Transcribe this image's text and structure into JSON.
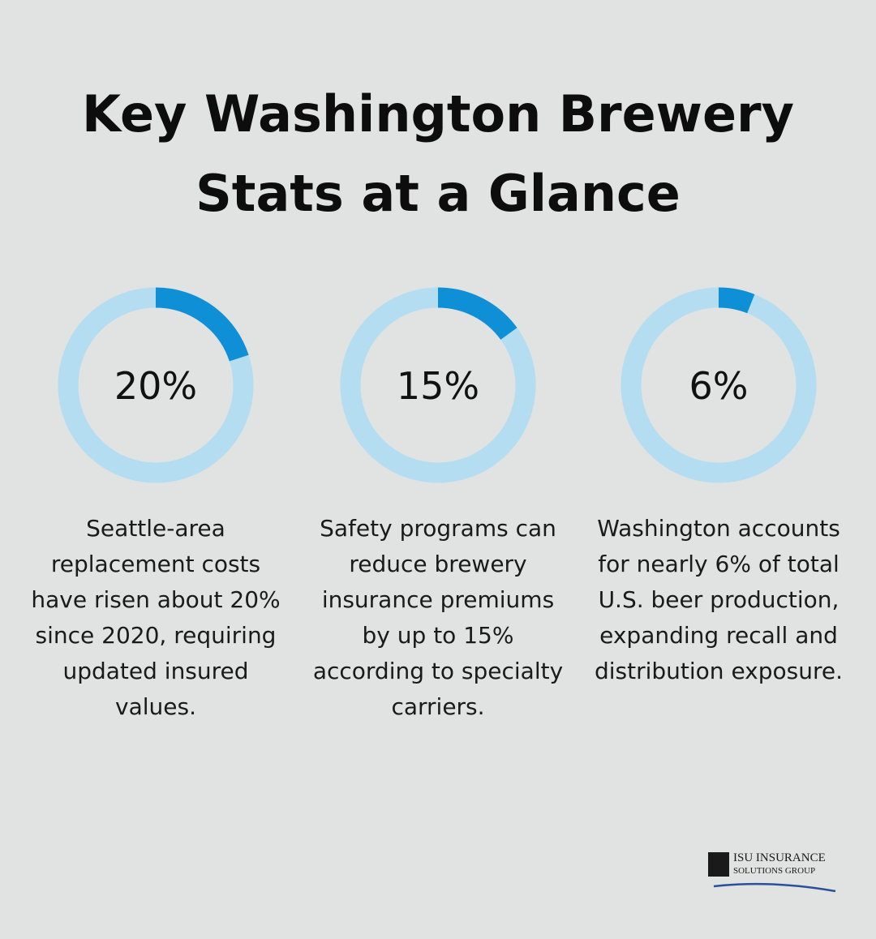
{
  "title": "Key Washington Brewery Stats at a Glance",
  "chart_data": [
    {
      "type": "donut",
      "values": [
        20
      ],
      "value_labels": [
        "20%"
      ],
      "color": "#0f8fd6",
      "track_color": "#b5ddf1",
      "annotation": "Seattle-area replacement costs have risen about 20% since 2020, requiring updated insured values."
    },
    {
      "type": "donut",
      "values": [
        15
      ],
      "value_labels": [
        "15%"
      ],
      "color": "#0f8fd6",
      "track_color": "#b5ddf1",
      "annotation": "Safety programs can reduce brewery insurance premiums by up to 15% according to specialty carriers."
    },
    {
      "type": "donut",
      "values": [
        6
      ],
      "value_labels": [
        "6%"
      ],
      "color": "#0f8fd6",
      "track_color": "#b5ddf1",
      "annotation": "Washington accounts for nearly 6% of total U.S. beer production, expanding recall and distribution exposure."
    }
  ],
  "logo": {
    "line1": "ISU INSURANCE",
    "line2": "SOLUTIONS GROUP"
  }
}
